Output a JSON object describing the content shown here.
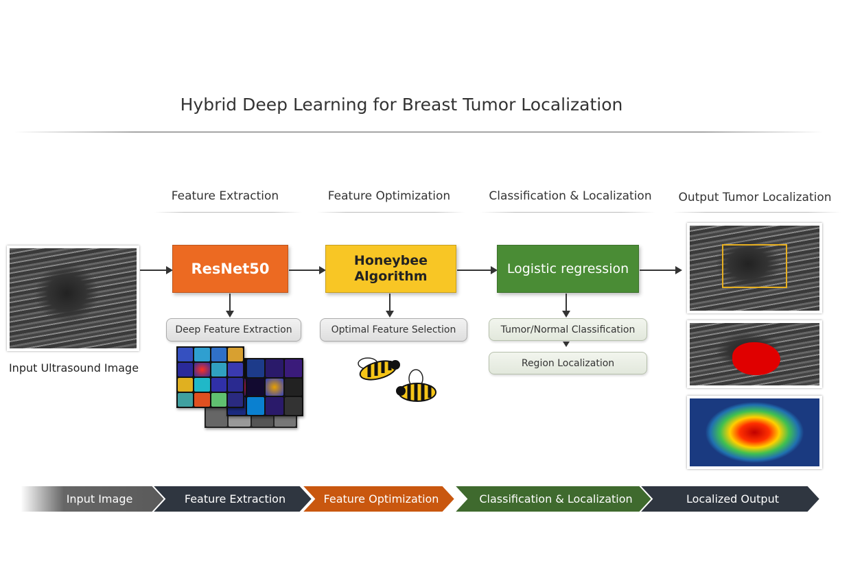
{
  "title": "Hybrid Deep Learning for Breast Tumor Localization",
  "sections": [
    "Feature Extraction",
    "Feature Optimization",
    "Classification & Localization",
    "Output Tumor Localization"
  ],
  "input": {
    "label": "Input Ultrasound Image"
  },
  "blocks": {
    "resnet": {
      "label": "ResNet50",
      "color": "#ec6a22",
      "sub": "Deep Feature Extraction"
    },
    "honeybee": {
      "label": "Honeybee Algorithm",
      "color": "#f8c625",
      "sub": "Optimal Feature Selection"
    },
    "logistic": {
      "label": "Logistic regression",
      "color": "#4a8c35",
      "subs": [
        "Tumor/Normal Classification",
        "Region Localization"
      ]
    }
  },
  "pipeline": [
    {
      "label": "Input Image",
      "color": "#6b6b6b"
    },
    {
      "label": "Feature Extraction",
      "color": "#2f3640"
    },
    {
      "label": "Feature Optimization",
      "color": "#c9570f"
    },
    {
      "label": "Classification & Localization",
      "color": "#3f6a2e"
    },
    {
      "label": "Localized Output",
      "color": "#2f3640"
    }
  ]
}
